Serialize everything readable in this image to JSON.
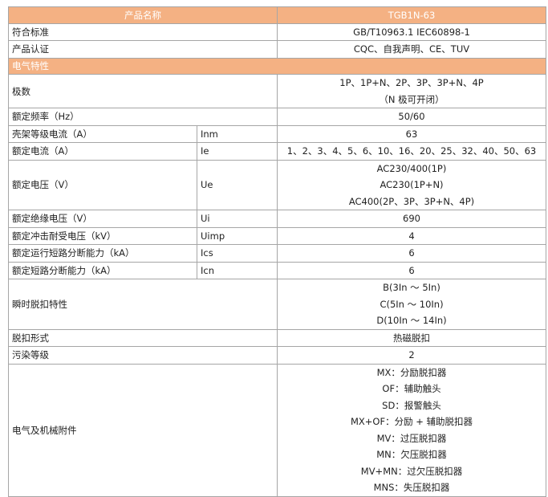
{
  "header": {
    "label": "产品名称",
    "value": "TGB1N-63"
  },
  "general": [
    {
      "label": "符合标准",
      "lines": [
        "GB/T10963.1  IEC60898-1"
      ]
    },
    {
      "label": "产品认证",
      "lines": [
        "CQC、自我声明、CE、TUV"
      ]
    }
  ],
  "section": "电气特性",
  "specs": [
    {
      "label": "极数",
      "lines": [
        "1P、1P+N、2P、3P、3P+N、4P",
        "（N 极可开闭）"
      ]
    },
    {
      "label": "额定频率（Hz）",
      "lines": [
        "50/60"
      ]
    },
    {
      "label": "壳架等级电流（A）",
      "symbol": "Inm",
      "lines": [
        "63"
      ]
    },
    {
      "label": "额定电流（A）",
      "symbol": "Ie",
      "lines": [
        "1、2、3、4、5、6、10、16、20、25、32、40、50、63"
      ]
    },
    {
      "label": "额定电压（V）",
      "symbol": "Ue",
      "lines": [
        "AC230/400(1P)",
        "AC230(1P+N)",
        "AC400(2P、3P、3P+N、4P)"
      ]
    },
    {
      "label": "额定绝缘电压（V）",
      "symbol": "Ui",
      "lines": [
        "690"
      ]
    },
    {
      "label": "额定冲击耐受电压（kV）",
      "symbol": "Uimp",
      "lines": [
        "4"
      ]
    },
    {
      "label": "额定运行短路分断能力（kA）",
      "symbol": "Ics",
      "lines": [
        "6"
      ]
    },
    {
      "label": "额定短路分断能力（kA）",
      "symbol": "Icn",
      "lines": [
        "6"
      ]
    },
    {
      "label": "瞬时脱扣特性",
      "lines": [
        "B(3In ～ 5In)",
        "C(5In ～ 10In)",
        "D(10In ～ 14In)"
      ]
    },
    {
      "label": "脱扣形式",
      "lines": [
        "热磁脱扣"
      ]
    },
    {
      "label": "污染等级",
      "lines": [
        "2"
      ]
    },
    {
      "label": "电气及机械附件",
      "lines": [
        "MX：分励脱扣器",
        "OF：辅助触头",
        "SD：报警触头",
        "MX+OF：分励 + 辅助脱扣器",
        "MV：过压脱扣器",
        "MN：欠压脱扣器",
        "MV+MN：过欠压脱扣器",
        "MNS：失压脱扣器"
      ]
    }
  ]
}
